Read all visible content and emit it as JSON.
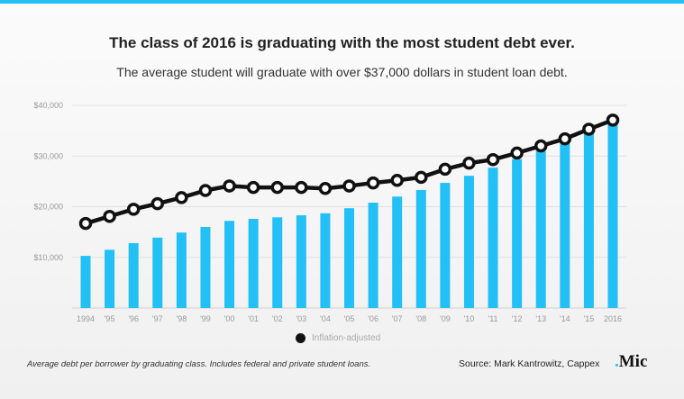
{
  "colors": {
    "accent": "#22c0f5",
    "bar": "#22c0f5",
    "line": "#111111"
  },
  "header": {
    "title": "The class of 2016 is graduating with the most student debt ever.",
    "subtitle": "The average student will graduate with over $37,000 dollars in student loan debt."
  },
  "chart_data": {
    "type": "bar",
    "categories": [
      "1994",
      "'95",
      "'96",
      "'97",
      "'98",
      "'99",
      "'00",
      "'01",
      "'02",
      "'03",
      "'04",
      "'05",
      "'06",
      "'07",
      "'08",
      "'09",
      "'10",
      "'11",
      "'12",
      "'13",
      "'14",
      "'15",
      "2016"
    ],
    "ylim": [
      0,
      40000
    ],
    "yticks": [
      10000,
      20000,
      30000,
      40000
    ],
    "ytick_labels": [
      "$10,000",
      "$20,000",
      "$30,000",
      "$40,000"
    ],
    "grid": true,
    "legend_placement": "bottom",
    "series": [
      {
        "type": "bar",
        "values": [
          10300,
          11500,
          12800,
          13900,
          14900,
          16000,
          17200,
          17600,
          17900,
          18300,
          18700,
          19700,
          20800,
          22000,
          23300,
          24700,
          26100,
          27700,
          29400,
          31000,
          32500,
          34500,
          37200
        ]
      },
      {
        "name": "Inflation-adjusted",
        "type": "line",
        "values": [
          16700,
          18100,
          19500,
          20600,
          21800,
          23200,
          24100,
          23800,
          23800,
          23800,
          23600,
          24100,
          24700,
          25200,
          25800,
          27400,
          28600,
          29300,
          30600,
          32000,
          33400,
          35300,
          37100
        ]
      }
    ]
  },
  "footer": {
    "note": "Average debt per borrower by graduating class. Includes federal and private student loans.",
    "source": "Source: Mark Kantrowitz, Cappex",
    "logo": ".Mic"
  }
}
